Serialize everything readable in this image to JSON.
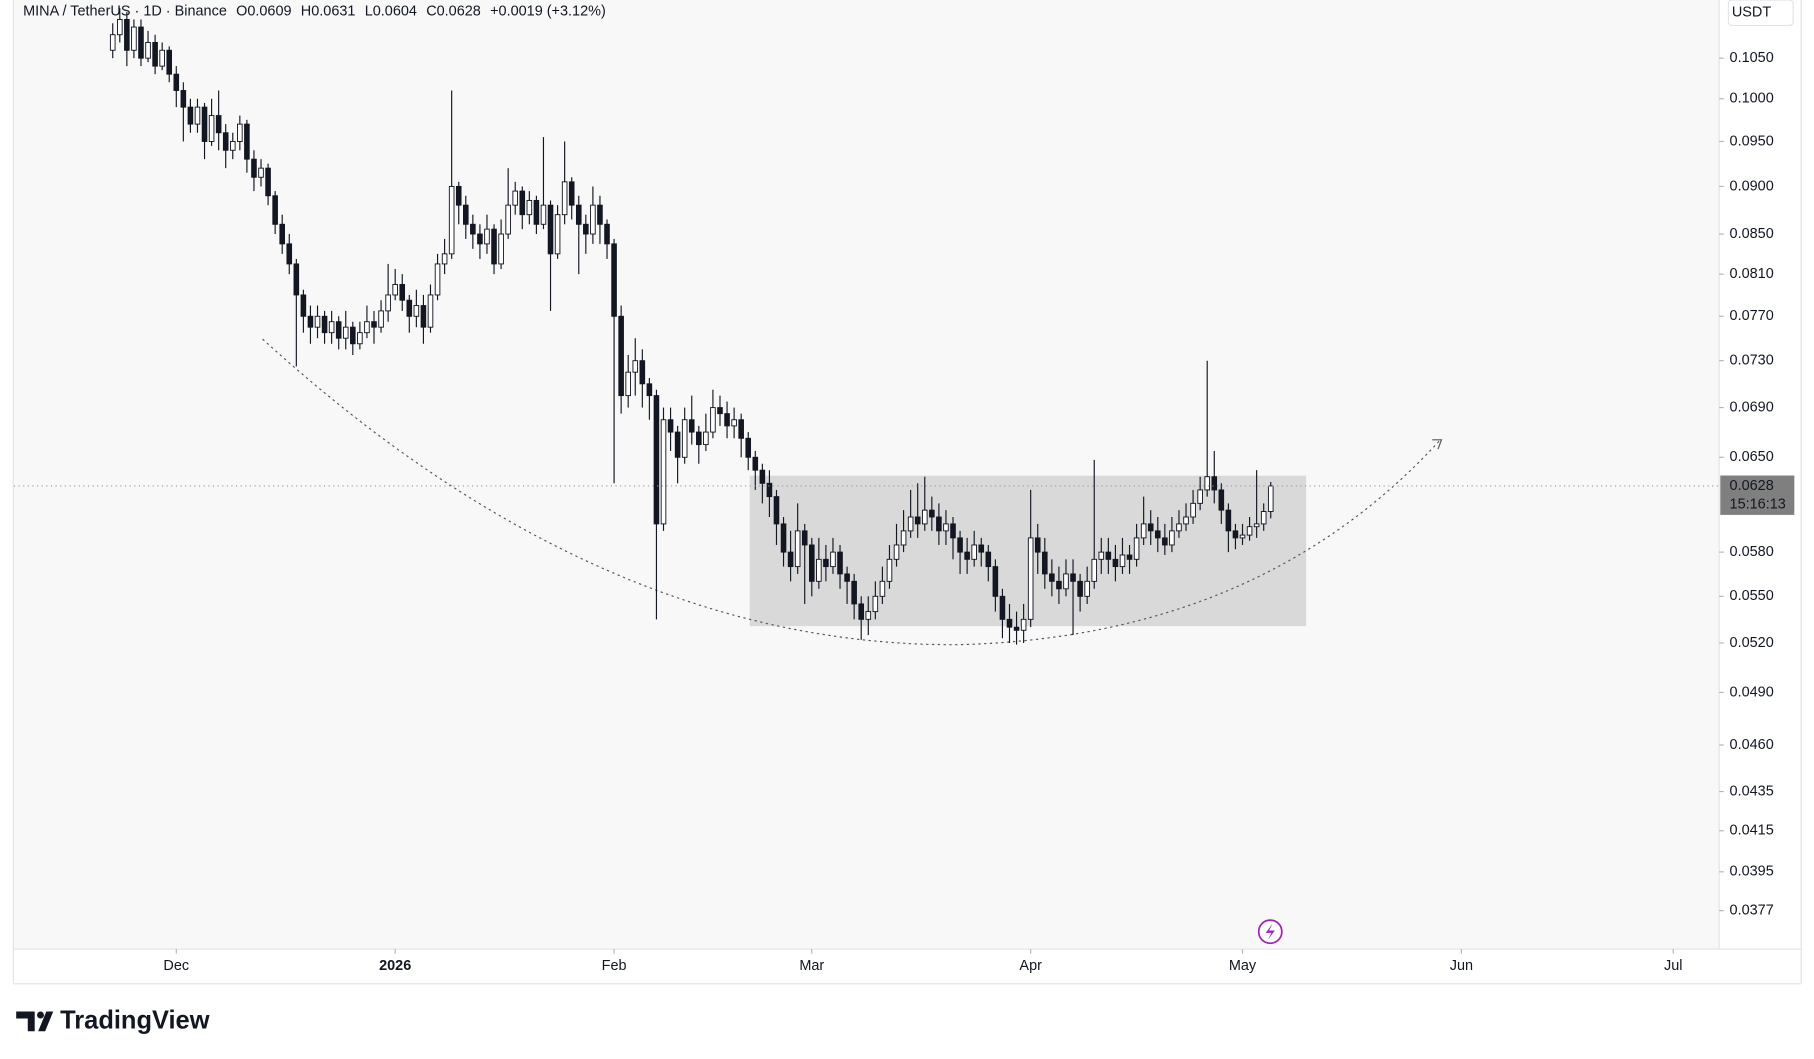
{
  "chart_data": {
    "type": "candlestick",
    "legend": {
      "symbol": "MINA / TetherUS · 1D · Binance",
      "items": [
        "O0.0609",
        "H0.0631",
        "L0.0604",
        "C0.0628",
        "+0.0019 (+3.12%)"
      ]
    },
    "currency": "USDT",
    "last_price": {
      "value": 0.0628,
      "countdown": "15:16:13"
    },
    "log_scale": true,
    "up_color": "#ffffff",
    "down_color": "#131722",
    "outline_color": "#131722",
    "xlim": [
      -23,
      218.5
    ],
    "xticks": [
      {
        "value": 0,
        "label": "Dec"
      },
      {
        "value": 31,
        "label": "2026"
      },
      {
        "value": 62,
        "label": "Feb"
      },
      {
        "value": 90,
        "label": "Mar"
      },
      {
        "value": 121,
        "label": "Apr"
      },
      {
        "value": 151,
        "label": "May"
      },
      {
        "value": 182,
        "label": "Jun"
      },
      {
        "value": 212,
        "label": "Jul"
      }
    ],
    "ylim": [
      0.036,
      0.1126
    ],
    "yticks": [
      {
        "value": 0.105,
        "label": "0.1050"
      },
      {
        "value": 0.1,
        "label": "0.1000"
      },
      {
        "value": 0.095,
        "label": "0.0950"
      },
      {
        "value": 0.09,
        "label": "0.0900"
      },
      {
        "value": 0.085,
        "label": "0.0850"
      },
      {
        "value": 0.081,
        "label": "0.0810"
      },
      {
        "value": 0.077,
        "label": "0.0770"
      },
      {
        "value": 0.073,
        "label": "0.0730"
      },
      {
        "value": 0.069,
        "label": "0.0690"
      },
      {
        "value": 0.065,
        "label": "0.0650"
      },
      {
        "value": 0.058,
        "label": "0.0580"
      },
      {
        "value": 0.055,
        "label": "0.0550"
      },
      {
        "value": 0.052,
        "label": "0.0520"
      },
      {
        "value": 0.049,
        "label": "0.0490"
      },
      {
        "value": 0.046,
        "label": "0.0460"
      },
      {
        "value": 0.0435,
        "label": "0.0435"
      },
      {
        "value": 0.0415,
        "label": "0.0415"
      },
      {
        "value": 0.0395,
        "label": "0.0395"
      },
      {
        "value": 0.0377,
        "label": "0.0377"
      }
    ],
    "x": [
      -9,
      -8,
      -7,
      -6,
      -5,
      -4,
      -3,
      -2,
      -1,
      0,
      1,
      2,
      3,
      4,
      5,
      6,
      7,
      8,
      9,
      10,
      11,
      12,
      13,
      14,
      15,
      16,
      17,
      18,
      19,
      20,
      21,
      22,
      23,
      24,
      25,
      26,
      27,
      28,
      29,
      30,
      31,
      32,
      33,
      34,
      35,
      36,
      37,
      38,
      39,
      40,
      41,
      42,
      43,
      44,
      45,
      46,
      47,
      48,
      49,
      50,
      51,
      52,
      53,
      54,
      55,
      56,
      57,
      58,
      59,
      60,
      61,
      62,
      63,
      64,
      65,
      66,
      67,
      68,
      69,
      70,
      71,
      72,
      73,
      74,
      75,
      76,
      77,
      78,
      79,
      80,
      81,
      82,
      83,
      84,
      85,
      86,
      87,
      88,
      89,
      90,
      91,
      92,
      93,
      94,
      95,
      96,
      97,
      98,
      99,
      100,
      101,
      102,
      103,
      104,
      105,
      106,
      107,
      108,
      109,
      110,
      111,
      112,
      113,
      114,
      115,
      116,
      117,
      118,
      119,
      120,
      121,
      122,
      123,
      124,
      125,
      126,
      127,
      128,
      129,
      130,
      131,
      132,
      133,
      134,
      135,
      136,
      137,
      138,
      139,
      140,
      141,
      142,
      143,
      144,
      145,
      146,
      147,
      148,
      149,
      150,
      151,
      152,
      153,
      154,
      155
    ],
    "open": [
      0.106,
      0.108,
      0.11,
      0.106,
      0.109,
      0.105,
      0.107,
      0.104,
      0.106,
      0.103,
      0.101,
      0.099,
      0.097,
      0.099,
      0.095,
      0.098,
      0.096,
      0.094,
      0.095,
      0.097,
      0.093,
      0.091,
      0.092,
      0.089,
      0.086,
      0.084,
      0.082,
      0.079,
      0.077,
      0.076,
      0.077,
      0.0755,
      0.0765,
      0.075,
      0.076,
      0.0745,
      0.0755,
      0.0765,
      0.076,
      0.0775,
      0.079,
      0.08,
      0.0785,
      0.077,
      0.078,
      0.076,
      0.079,
      0.082,
      0.083,
      0.09,
      0.088,
      0.086,
      0.085,
      0.084,
      0.0855,
      0.082,
      0.085,
      0.088,
      0.0895,
      0.087,
      0.0885,
      0.086,
      0.088,
      0.083,
      0.087,
      0.0905,
      0.088,
      0.086,
      0.085,
      0.088,
      0.086,
      0.084,
      0.077,
      0.07,
      0.072,
      0.073,
      0.071,
      0.07,
      0.06,
      0.068,
      0.067,
      0.065,
      0.068,
      0.067,
      0.066,
      0.067,
      0.069,
      0.0685,
      0.0675,
      0.068,
      0.0665,
      0.065,
      0.064,
      0.063,
      0.062,
      0.06,
      0.058,
      0.057,
      0.0595,
      0.0585,
      0.056,
      0.0575,
      0.057,
      0.058,
      0.0565,
      0.056,
      0.0545,
      0.0535,
      0.054,
      0.055,
      0.056,
      0.0575,
      0.0585,
      0.0595,
      0.0605,
      0.06,
      0.061,
      0.0605,
      0.0595,
      0.06,
      0.059,
      0.058,
      0.0575,
      0.0585,
      0.058,
      0.057,
      0.055,
      0.0535,
      0.053,
      0.0528,
      0.0535,
      0.059,
      0.058,
      0.0565,
      0.056,
      0.0555,
      0.0565,
      0.056,
      0.055,
      0.056,
      0.0575,
      0.058,
      0.0575,
      0.057,
      0.0578,
      0.0575,
      0.059,
      0.06,
      0.0595,
      0.059,
      0.0585,
      0.0595,
      0.06,
      0.0605,
      0.0615,
      0.0625,
      0.0635,
      0.0625,
      0.061,
      0.0595,
      0.059,
      0.0592,
      0.0598,
      0.06,
      0.0609
    ],
    "high": [
      0.1095,
      0.1115,
      0.111,
      0.11,
      0.11,
      0.1085,
      0.108,
      0.107,
      0.1065,
      0.104,
      0.102,
      0.1,
      0.1,
      0.0995,
      0.1,
      0.101,
      0.097,
      0.096,
      0.098,
      0.0975,
      0.094,
      0.093,
      0.0925,
      0.0895,
      0.087,
      0.085,
      0.0825,
      0.0795,
      0.078,
      0.078,
      0.0775,
      0.0775,
      0.077,
      0.0775,
      0.0765,
      0.0765,
      0.078,
      0.0775,
      0.0785,
      0.082,
      0.0815,
      0.081,
      0.079,
      0.0795,
      0.079,
      0.08,
      0.083,
      0.0845,
      0.101,
      0.0905,
      0.089,
      0.087,
      0.086,
      0.087,
      0.086,
      0.0865,
      0.092,
      0.0905,
      0.09,
      0.0895,
      0.089,
      0.0955,
      0.0885,
      0.088,
      0.095,
      0.091,
      0.089,
      0.087,
      0.09,
      0.089,
      0.0865,
      0.0845,
      0.078,
      0.0735,
      0.075,
      0.074,
      0.0715,
      0.0705,
      0.069,
      0.069,
      0.0675,
      0.069,
      0.07,
      0.0675,
      0.0685,
      0.0705,
      0.07,
      0.0695,
      0.069,
      0.0685,
      0.067,
      0.0655,
      0.0645,
      0.064,
      0.0625,
      0.0605,
      0.0595,
      0.0615,
      0.06,
      0.059,
      0.059,
      0.0585,
      0.059,
      0.0585,
      0.057,
      0.0565,
      0.055,
      0.055,
      0.056,
      0.057,
      0.0585,
      0.06,
      0.061,
      0.0625,
      0.063,
      0.0635,
      0.062,
      0.0615,
      0.061,
      0.0605,
      0.0595,
      0.059,
      0.0595,
      0.059,
      0.0585,
      0.0575,
      0.0555,
      0.0545,
      0.054,
      0.0545,
      0.0625,
      0.06,
      0.059,
      0.0575,
      0.057,
      0.0575,
      0.0575,
      0.0565,
      0.057,
      0.0648,
      0.059,
      0.059,
      0.0585,
      0.059,
      0.0585,
      0.06,
      0.062,
      0.061,
      0.0605,
      0.06,
      0.0605,
      0.061,
      0.0615,
      0.0625,
      0.0635,
      0.073,
      0.0655,
      0.063,
      0.0615,
      0.06,
      0.06,
      0.0605,
      0.064,
      0.0615,
      0.0631
    ],
    "low": [
      0.105,
      0.107,
      0.104,
      0.105,
      0.104,
      0.1045,
      0.103,
      0.1035,
      0.102,
      0.099,
      0.095,
      0.096,
      0.096,
      0.093,
      0.0945,
      0.094,
      0.092,
      0.093,
      0.094,
      0.0915,
      0.0895,
      0.09,
      0.088,
      0.085,
      0.083,
      0.081,
      0.0725,
      0.0755,
      0.0745,
      0.075,
      0.0745,
      0.0745,
      0.074,
      0.074,
      0.0735,
      0.074,
      0.075,
      0.0745,
      0.0755,
      0.0765,
      0.0785,
      0.0775,
      0.0755,
      0.076,
      0.0745,
      0.0755,
      0.0785,
      0.081,
      0.0825,
      0.086,
      0.0845,
      0.0835,
      0.0825,
      0.083,
      0.081,
      0.0815,
      0.0845,
      0.087,
      0.0855,
      0.086,
      0.085,
      0.0855,
      0.0775,
      0.0825,
      0.086,
      0.0865,
      0.081,
      0.083,
      0.084,
      0.084,
      0.0825,
      0.063,
      0.0685,
      0.069,
      0.07,
      0.069,
      0.068,
      0.0535,
      0.0595,
      0.0655,
      0.063,
      0.0645,
      0.066,
      0.0645,
      0.0655,
      0.0665,
      0.0675,
      0.0665,
      0.0665,
      0.065,
      0.064,
      0.0625,
      0.0615,
      0.0605,
      0.0585,
      0.057,
      0.056,
      0.0565,
      0.0545,
      0.055,
      0.0555,
      0.056,
      0.0565,
      0.0555,
      0.0545,
      0.0535,
      0.0522,
      0.0525,
      0.0535,
      0.0545,
      0.0555,
      0.057,
      0.058,
      0.059,
      0.059,
      0.0595,
      0.0595,
      0.0585,
      0.0585,
      0.0575,
      0.0565,
      0.0565,
      0.057,
      0.057,
      0.056,
      0.054,
      0.0523,
      0.052,
      0.0519,
      0.052,
      0.053,
      0.0565,
      0.0555,
      0.055,
      0.0545,
      0.055,
      0.0525,
      0.054,
      0.0545,
      0.0555,
      0.0565,
      0.0565,
      0.056,
      0.0565,
      0.0565,
      0.057,
      0.0585,
      0.0585,
      0.058,
      0.0578,
      0.058,
      0.059,
      0.0595,
      0.06,
      0.061,
      0.062,
      0.0615,
      0.06,
      0.058,
      0.0582,
      0.0585,
      0.0588,
      0.059,
      0.0595,
      0.0604
    ],
    "close": [
      0.108,
      0.11,
      0.106,
      0.109,
      0.105,
      0.107,
      0.104,
      0.106,
      0.103,
      0.101,
      0.099,
      0.097,
      0.099,
      0.095,
      0.098,
      0.096,
      0.094,
      0.095,
      0.097,
      0.093,
      0.091,
      0.092,
      0.089,
      0.086,
      0.084,
      0.082,
      0.079,
      0.077,
      0.076,
      0.077,
      0.0755,
      0.0765,
      0.075,
      0.076,
      0.0745,
      0.0755,
      0.0765,
      0.076,
      0.0775,
      0.079,
      0.08,
      0.0785,
      0.077,
      0.078,
      0.076,
      0.079,
      0.082,
      0.083,
      0.09,
      0.088,
      0.086,
      0.085,
      0.084,
      0.0855,
      0.082,
      0.085,
      0.088,
      0.0895,
      0.087,
      0.0885,
      0.086,
      0.088,
      0.083,
      0.087,
      0.0905,
      0.088,
      0.086,
      0.085,
      0.088,
      0.086,
      0.084,
      0.077,
      0.07,
      0.072,
      0.073,
      0.071,
      0.07,
      0.06,
      0.068,
      0.067,
      0.065,
      0.068,
      0.067,
      0.066,
      0.067,
      0.069,
      0.0685,
      0.0675,
      0.068,
      0.0665,
      0.065,
      0.064,
      0.063,
      0.062,
      0.06,
      0.058,
      0.057,
      0.0595,
      0.0585,
      0.056,
      0.0575,
      0.057,
      0.058,
      0.0565,
      0.056,
      0.0545,
      0.0535,
      0.054,
      0.055,
      0.056,
      0.0575,
      0.0585,
      0.0595,
      0.0605,
      0.06,
      0.061,
      0.0605,
      0.0595,
      0.06,
      0.059,
      0.058,
      0.0575,
      0.0585,
      0.058,
      0.057,
      0.055,
      0.0535,
      0.053,
      0.0528,
      0.0535,
      0.059,
      0.058,
      0.0565,
      0.056,
      0.0555,
      0.0565,
      0.056,
      0.055,
      0.056,
      0.0575,
      0.058,
      0.0575,
      0.057,
      0.0578,
      0.0575,
      0.059,
      0.06,
      0.0595,
      0.059,
      0.0585,
      0.0595,
      0.06,
      0.0605,
      0.0615,
      0.0625,
      0.0635,
      0.0625,
      0.061,
      0.0595,
      0.059,
      0.0592,
      0.0598,
      0.06,
      0.0609,
      0.0628
    ]
  },
  "branding": "TradingView"
}
